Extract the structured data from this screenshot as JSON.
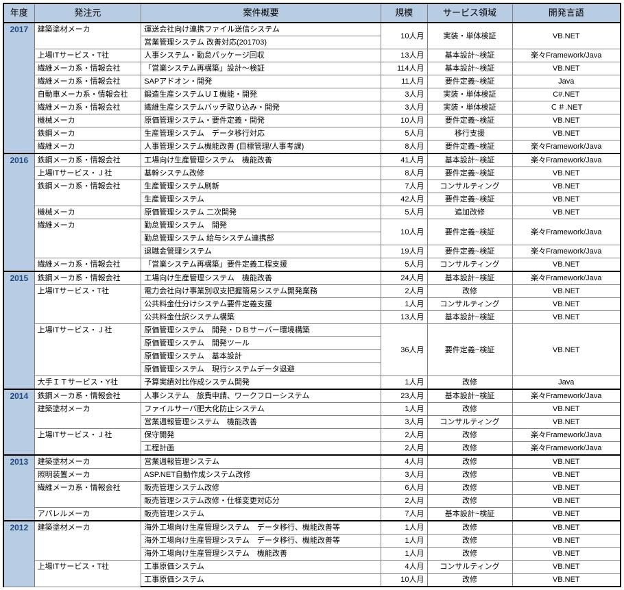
{
  "headers": {
    "year": "年度",
    "client": "発注元",
    "desc": "案件概要",
    "scale": "規模",
    "area": "サービス領域",
    "lang": "開発言語"
  },
  "colors": {
    "header_bg": "#b8cce4",
    "year_bg": "#b8cce4",
    "year_text": "#1f497d",
    "border": "#7f7f7f",
    "heavy_border": "#000000",
    "bg": "#ffffff"
  },
  "years": [
    {
      "year": "2017",
      "rows": [
        {
          "client": "建築塗材メーカ",
          "client_span": 2,
          "desc": "運送会社向け連携ファイル送信システム",
          "scale": "10人月",
          "scale_span": 2,
          "area": "実装・単体検証",
          "area_span": 2,
          "lang": "VB.NET",
          "lang_span": 2
        },
        {
          "desc": "営業管理システム 改善対応(201703)"
        },
        {
          "client": "上場ITサービス・T社",
          "desc": "人事システム・勤怠パッケージ回収",
          "scale": "13人月",
          "area": "基本設計~検証",
          "lang": "楽々Framework/Java"
        },
        {
          "client": "繊維メーカ系・情報会社",
          "desc": "「営業システム再構築」設計～検証",
          "scale": "114人月",
          "area": "基本設計~検証",
          "lang": "VB.NET"
        },
        {
          "client": "繊維メーカ系・情報会社",
          "desc": "SAPアドオン・開発",
          "scale": "11人月",
          "area": "要件定義~検証",
          "lang": "Java"
        },
        {
          "client": "自動車メーカ系・情報会社",
          "desc": "鍛造生産システムＵＩ機能・開発",
          "scale": "3人月",
          "area": "実装・単体検証",
          "lang": "C#.NET"
        },
        {
          "client": "繊維メーカ系・情報会社",
          "desc": "繊維生産システムバッチ取り込み・開発",
          "scale": "3人月",
          "area": "実装・単体検証",
          "lang": "Ｃ＃.NET"
        },
        {
          "client": "機械メーカ",
          "desc": "原価管理システム・要件定義・開発",
          "scale": "10人月",
          "area": "要件定義~検証",
          "lang": "VB.NET"
        },
        {
          "client": "鉄鋼メーカ",
          "desc": "生産管理システム　データ移行対応",
          "scale": "5人月",
          "area": "移行支援",
          "lang": "VB.NET"
        },
        {
          "client": "繊維メーカ",
          "desc": "人事管理システム機能改善 (目標管理/人事考課)",
          "scale": "8人月",
          "area": "要件定義~検証",
          "lang": "楽々Framework/Java"
        }
      ]
    },
    {
      "year": "2016",
      "rows": [
        {
          "client": "鉄鋼メーカ系・情報会社",
          "desc": "工場向け生産管理システム　機能改善",
          "scale": "41人月",
          "area": "基本設計~検証",
          "lang": "楽々Framework/Java"
        },
        {
          "client": "上場ITサービス・Ｊ社",
          "desc": "基幹システム改修",
          "scale": "8人月",
          "area": "要件定義~検証",
          "lang": "VB.NET"
        },
        {
          "client": "鉄鋼メーカ系・情報会社",
          "client_span": 2,
          "desc": "生産管理システム刷新",
          "scale": "7人月",
          "area": "コンサルティング",
          "lang": "VB.NET"
        },
        {
          "desc": "生産管理システム",
          "scale": "42人月",
          "area": "要件定義~検証",
          "lang": "VB.NET"
        },
        {
          "client": "機械メーカ",
          "desc": "原価管理システム 二次開発",
          "scale": "5人月",
          "area": "追加改修",
          "lang": "VB.NET"
        },
        {
          "client": "繊維メーカ",
          "client_span": 3,
          "desc": "勤怠管理システム　開発",
          "scale": "10人月",
          "scale_span": 2,
          "area": "要件定義~検証",
          "area_span": 2,
          "lang": "楽々Framework/Java",
          "lang_span": 2
        },
        {
          "desc": "勤怠管理システム 給与システム連携部"
        },
        {
          "desc": "退職金管理システム",
          "scale": "19人月",
          "area": "要件定義~検証",
          "lang": "楽々Framework/Java"
        },
        {
          "client": "繊維メーカ系・情報会社",
          "desc": "「営業システム再構築」要件定義工程支援",
          "scale": "5人月",
          "area": "コンサルティング",
          "lang": "VB.NET"
        }
      ]
    },
    {
      "year": "2015",
      "rows": [
        {
          "client": "鉄鋼メーカ系・情報会社",
          "desc": "工場向け生産管理システム　機能改善",
          "scale": "24人月",
          "area": "基本設計~検証",
          "lang": "楽々Framework/Java"
        },
        {
          "client": "上場ITサービス・T社",
          "client_span": 3,
          "desc": "電力会社向け事業別収支把握簡易システム開発業務",
          "scale": "2人月",
          "area": "改修",
          "lang": "VB.NET"
        },
        {
          "desc": "公共料金仕分けシステム要件定義支援",
          "scale": "1人月",
          "area": "コンサルティング",
          "lang": "VB.NET"
        },
        {
          "desc": "公共料金仕訳システム構築",
          "scale": "13人月",
          "area": "基本設計~検証",
          "lang": "VB.NET"
        },
        {
          "client": "上場ITサービス・Ｊ社",
          "client_span": 4,
          "desc": "原価管理システム　開発・ＤＢサーバー環境構築",
          "scale": "36人月",
          "scale_span": 4,
          "area": "要件定義~検証",
          "area_span": 4,
          "lang": "VB.NET",
          "lang_span": 4
        },
        {
          "desc": "原価管理システム　開発ツール"
        },
        {
          "desc": "原価管理システム　基本設計"
        },
        {
          "desc": "原価管理システム　現行システムデータ退避"
        },
        {
          "client": "大手ＩＴサービス・Y社",
          "desc": "予算実績対比作成システム開発",
          "scale": "1人月",
          "area": "改修",
          "lang": "Java"
        }
      ]
    },
    {
      "year": "2014",
      "rows": [
        {
          "client": "鉄鋼メーカ系・情報会社",
          "desc": "人事システム　旅費申請、ワークフローシステム",
          "scale": "23人月",
          "area": "基本設計~検証",
          "lang": "楽々Framework/Java"
        },
        {
          "client": "建築塗材メーカ",
          "client_span": 2,
          "desc": "ファイルサーバ肥大化防止システム",
          "scale": "1人月",
          "area": "改修",
          "lang": "VB.NET"
        },
        {
          "desc": "営業週報管理システム　機能改善",
          "scale": "3人月",
          "area": "コンサルティング",
          "lang": "VB.NET"
        },
        {
          "client": "上場ITサービス・Ｊ社",
          "client_span": 2,
          "desc": "保守開発",
          "scale": "2人月",
          "area": "改修",
          "lang": "楽々Framework/Java"
        },
        {
          "desc": "工程計画",
          "scale": "2人月",
          "area": "改修",
          "lang": "楽々Framework/Java"
        }
      ]
    },
    {
      "year": "2013",
      "rows": [
        {
          "client": "建築塗材メーカ",
          "desc": "営業週報管理システム",
          "scale": "4人月",
          "area": "改修",
          "lang": "VB.NET"
        },
        {
          "client": "照明装置メーカ",
          "desc": "ASP.NET自動作成システム改修",
          "scale": "3人月",
          "area": "改修",
          "lang": "VB.NET"
        },
        {
          "client": "繊維メーカ系・情報会社",
          "client_span": 2,
          "desc": "販売管理システム改修",
          "scale": "6人月",
          "area": "改修",
          "lang": "VB.NET"
        },
        {
          "desc": "販売管理システム改修・仕様変更対応分",
          "scale": "2人月",
          "area": "改修",
          "lang": "VB.NET"
        },
        {
          "client": "アパレルメーカ",
          "desc": "販売管理システム",
          "scale": "7人月",
          "area": "基本設計~検証",
          "lang": "VB.NET"
        }
      ]
    },
    {
      "year": "2012",
      "rows": [
        {
          "client": "建築塗材メーカ",
          "client_span": 3,
          "desc": "海外工場向け生産管理システム　データ移行、機能改善等",
          "scale": "1人月",
          "area": "改修",
          "lang": "VB.NET"
        },
        {
          "desc": "海外工場向け生産管理システム　データ移行、機能改善等",
          "scale": "1人月",
          "area": "改修",
          "lang": "VB.NET"
        },
        {
          "desc": "海外工場向け生産管理システム　機能改善",
          "scale": "1人月",
          "area": "改修",
          "lang": "VB.NET"
        },
        {
          "client": "上場ITサービス・T社",
          "client_span": 2,
          "desc": "工事原価システム",
          "scale": "4人月",
          "area": "コンサルティング",
          "lang": "VB.NET"
        },
        {
          "desc": "工事原価システム",
          "scale": "10人月",
          "area": "改修",
          "lang": "VB.NET"
        }
      ]
    }
  ]
}
